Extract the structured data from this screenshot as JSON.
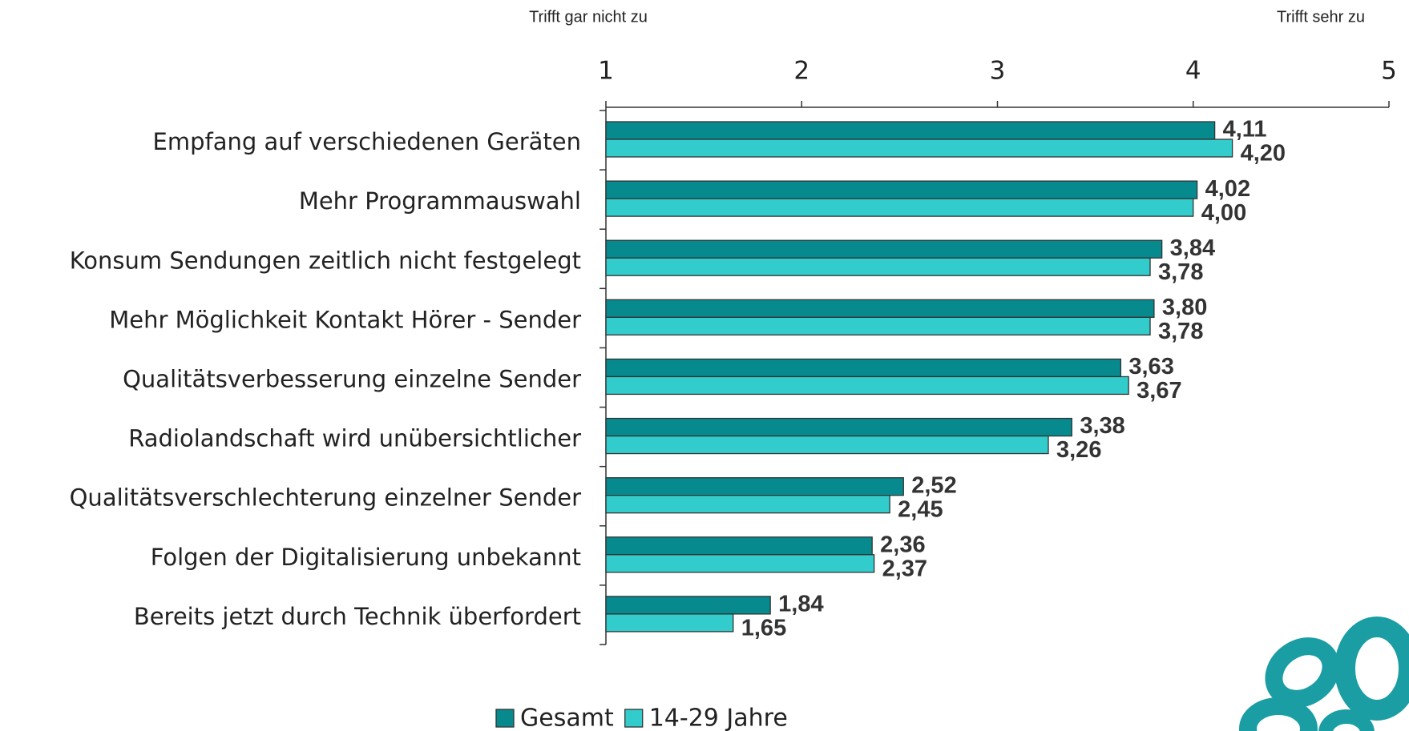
{
  "chart_data": {
    "type": "bar",
    "orientation": "horizontal",
    "annotations": [
      "Trifft gar nicht zu",
      "Trifft sehr zu"
    ],
    "categories": [
      "Empfang auf verschiedenen Geräten",
      "Mehr Programmauswahl",
      "Konsum Sendungen zeitlich nicht festgelegt",
      "Mehr Möglichkeit Kontakt Hörer - Sender",
      "Qualitätsverbesserung einzelne Sender",
      "Radiolandschaft wird unübersichtlicher",
      "Qualitätsverschlechterung einzelner Sender",
      "Folgen der Digitalisierung unbekannt",
      "Bereits jetzt durch Technik überfordert"
    ],
    "series": [
      {
        "name": "Gesamt",
        "color": "#078a8e",
        "values": [
          4.11,
          4.02,
          3.84,
          3.8,
          3.63,
          3.38,
          2.52,
          2.36,
          1.84
        ],
        "value_labels": [
          "4,11",
          "4,02",
          "3,84",
          "3,80",
          "3,63",
          "3,38",
          "2,52",
          "2,36",
          "1,84"
        ]
      },
      {
        "name": "14-29 Jahre",
        "color": "#33cccc",
        "values": [
          4.2,
          4.0,
          3.78,
          3.78,
          3.67,
          3.26,
          2.45,
          2.37,
          1.65
        ],
        "value_labels": [
          "4,20",
          "4,00",
          "3,78",
          "3,78",
          "3,67",
          "3,26",
          "2,45",
          "2,37",
          "1,65"
        ]
      }
    ],
    "xlim": [
      1,
      5
    ],
    "xticks": [
      1,
      2,
      3,
      4,
      5
    ],
    "legend": "bottom"
  }
}
